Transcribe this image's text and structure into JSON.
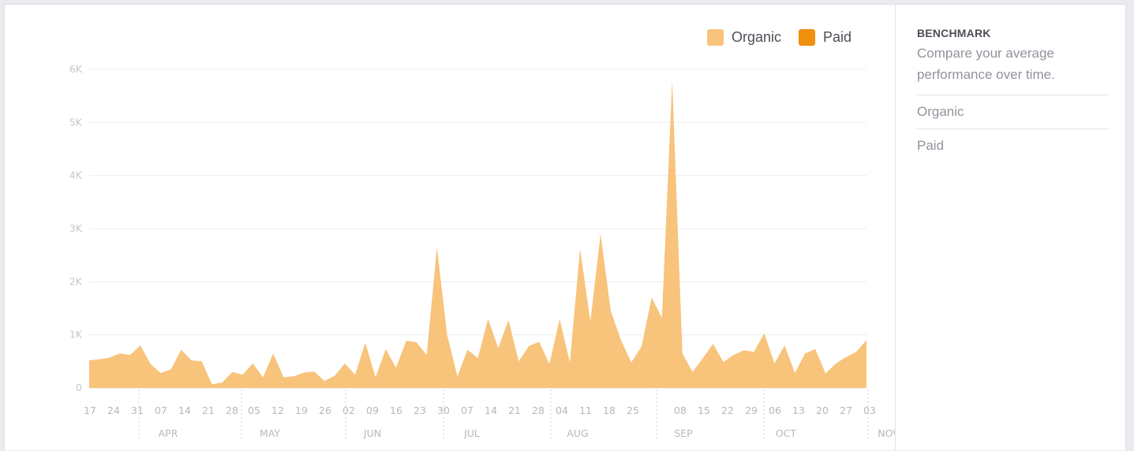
{
  "legend": {
    "organic_label": "Organic",
    "paid_label": "Paid",
    "organic_color": "#f8c37b",
    "paid_color": "#f0900e"
  },
  "benchmark": {
    "title": "BENCHMARK",
    "description": "Compare your average performance over time.",
    "options": [
      "Organic",
      "Paid"
    ]
  },
  "chart_data": {
    "type": "area",
    "ylim": [
      0,
      6000
    ],
    "y_ticks": [
      0,
      1000,
      2000,
      3000,
      4000,
      5000,
      6000
    ],
    "y_tick_labels": [
      "0",
      "1K",
      "2K",
      "3K",
      "4K",
      "5K",
      "6K"
    ],
    "grid": true,
    "legend_position": "top-right",
    "x_tick_labels": [
      "17",
      "24",
      "31",
      "07",
      "14",
      "21",
      "28",
      "05",
      "12",
      "19",
      "26",
      "02",
      "09",
      "16",
      "23",
      "30",
      "07",
      "14",
      "21",
      "28",
      "04",
      "11",
      "18",
      "25",
      "08",
      "15",
      "22",
      "29",
      "06",
      "13",
      "20",
      "27",
      "03"
    ],
    "month_labels": [
      "APR",
      "MAY",
      "JUN",
      "JUL",
      "AUG",
      "SEP",
      "OCT",
      "NOV"
    ],
    "series": [
      {
        "name": "Organic",
        "values": [
          520,
          540,
          570,
          650,
          620,
          800,
          450,
          280,
          350,
          720,
          520,
          500,
          70,
          100,
          300,
          250,
          460,
          200,
          650,
          200,
          220,
          290,
          310,
          130,
          230,
          460,
          250,
          850,
          200,
          730,
          380,
          890,
          860,
          620,
          2650,
          1000,
          220,
          720,
          560,
          1300,
          750,
          1280,
          500,
          790,
          870,
          450,
          1300,
          480,
          2620,
          1250,
          2900,
          1450,
          900,
          480,
          780,
          1700,
          1320,
          5800,
          650,
          300,
          560,
          830,
          490,
          620,
          710,
          680,
          1030,
          460,
          800,
          280,
          650,
          730,
          270,
          460,
          580,
          680,
          900
        ],
        "paid_values": []
      }
    ]
  }
}
